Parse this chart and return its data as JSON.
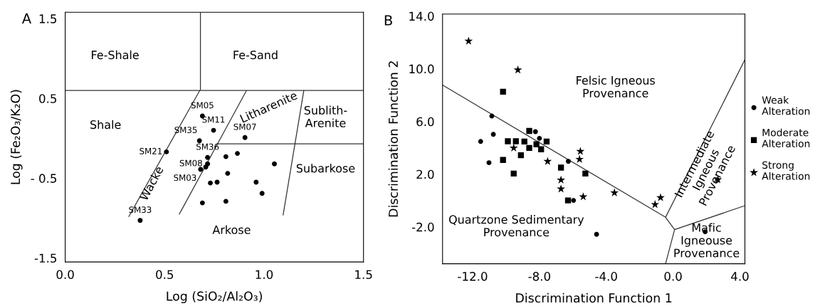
{
  "chart_data": [
    {
      "type": "scatter",
      "title": "A",
      "xlabel": "Log (SiO₂/Al₂O₃)",
      "ylabel": "Log (Fe₂O₃/K₂O)",
      "xlim": [
        0.0,
        1.5
      ],
      "ylim": [
        -1.55,
        1.58
      ],
      "xticks": [
        {
          "value": 0.0,
          "label": "0.0"
        },
        {
          "value": 0.5,
          "label": "0.5"
        },
        {
          "value": 1.0,
          "label": "1.0"
        },
        {
          "value": 1.5,
          "label": "1.5"
        }
      ],
      "yticks": [
        {
          "value": 1.5,
          "label": "1.5"
        },
        {
          "value": 0.5,
          "label": "0.5"
        },
        {
          "value": -0.5,
          "label": "- 0.5"
        },
        {
          "value": -1.5,
          "label": "-1.5"
        }
      ],
      "grid": false,
      "legend": false,
      "series": [
        {
          "marker": "circle",
          "color": "#000000",
          "x": [
            0.69,
            0.746,
            0.904,
            0.675,
            0.509,
            0.716,
            0.716,
            0.707,
            0.681,
            0.808,
            0.866,
            1.052,
            0.817,
            0.73,
            0.764,
            0.96,
            0.99,
            0.69,
            0.808,
            0.377
          ],
          "values": [
            0.28,
            0.1,
            0.01,
            -0.03,
            -0.17,
            -0.24,
            -0.32,
            -0.36,
            -0.39,
            -0.23,
            -0.19,
            -0.32,
            -0.44,
            -0.56,
            -0.55,
            -0.55,
            -0.69,
            -0.81,
            -0.79,
            -1.03
          ]
        },
        {
          "type": "line",
          "color": "#333333",
          "x": [
            0.0,
            1.5,
            null,
            0.68,
            0.68,
            null,
            0.677,
            0.32,
            null,
            0.912,
            0.574,
            null,
            1.2,
            1.096,
            null,
            0.766,
            1.5
          ],
          "values": [
            0.6,
            0.6,
            null,
            1.58,
            0.6,
            null,
            0.6,
            -0.98,
            null,
            0.6,
            -0.95,
            null,
            0.6,
            -0.96,
            null,
            -0.07,
            -0.07
          ]
        }
      ],
      "annotations": [
        {
          "text": "SM05",
          "x": 0.69,
          "y": 0.28
        },
        {
          "text": "SM11",
          "x": 0.746,
          "y": 0.1
        },
        {
          "text": "SM07",
          "x": 0.904,
          "y": 0.01
        },
        {
          "text": "SM35",
          "x": 0.675,
          "y": -0.03
        },
        {
          "text": "SM21",
          "x": 0.509,
          "y": -0.17
        },
        {
          "text": "SM36",
          "x": 0.716,
          "y": -0.24
        },
        {
          "text": "SM08",
          "x": 0.716,
          "y": -0.32
        },
        {
          "text": "SM03",
          "x": 0.681,
          "y": -0.39
        },
        {
          "text": "SM33",
          "x": 0.377,
          "y": -1.03
        },
        "Fe-Shale",
        "Fe-Sand",
        "Shale",
        "Litharenite",
        "Sublith-\nArenite",
        "Subarkose",
        "Wacke",
        "Arkose"
      ]
    },
    {
      "type": "scatter",
      "title": "B",
      "xlabel": "Discrimination Function 1",
      "ylabel": "Discrimination Function 2",
      "xlim": [
        -13.8,
        4.3
      ],
      "ylim": [
        -4.8,
        14.15
      ],
      "xticks": [
        {
          "value": -12,
          "label": "-12.0"
        },
        {
          "value": -8,
          "label": "-8.0"
        },
        {
          "value": -4,
          "label": "-4.0"
        },
        {
          "value": 0,
          "label": "0.0"
        },
        {
          "value": 4,
          "label": "4.0"
        }
      ],
      "yticks": [
        {
          "value": 14,
          "label": "14.0"
        },
        {
          "value": 10,
          "label": "10.0"
        },
        {
          "value": 6,
          "label": "6.0"
        },
        {
          "value": 2,
          "label": "2.0"
        },
        {
          "value": -2,
          "label": "-2.0"
        }
      ],
      "grid": false,
      "legend": "right",
      "series": [
        {
          "name": "Weak\nAlteration",
          "marker": "circle",
          "color": "#000000",
          "x": [
            -10.85,
            -10.76,
            -11.52,
            -8.24,
            -8.0,
            -11.02,
            -6.27,
            -5.96,
            -4.58,
            1.92
          ],
          "values": [
            6.41,
            5.02,
            4.48,
            5.23,
            4.72,
            2.87,
            2.97,
            0.01,
            -2.56,
            -2.37
          ]
        },
        {
          "name": "Moderate\nAlteration",
          "marker": "square",
          "color": "#000000",
          "x": [
            -10.18,
            -9.89,
            -9.41,
            -8.9,
            -8.61,
            -8.61,
            -8.18,
            -7.9,
            -7.57,
            -10.18,
            -9.11,
            -6.71,
            -9.54,
            -5.25,
            -6.29
          ],
          "values": [
            8.26,
            4.5,
            4.5,
            4.48,
            5.28,
            3.99,
            4.27,
            3.89,
            4.48,
            3.08,
            3.44,
            2.5,
            2.05,
            2.05,
            0.01
          ]
        },
        {
          "name": "Strong\nAlteration",
          "marker": "star",
          "color": "#000000",
          "x": [
            -12.24,
            -9.29,
            -9.54,
            -5.55,
            -7.51,
            -5.6,
            -6.71,
            -6.71,
            -5.38,
            -3.51,
            -0.75,
            -1.08,
            2.68
          ],
          "values": [
            12.1,
            9.91,
            3.99,
            3.73,
            2.97,
            3.13,
            1.56,
            0.88,
            0.29,
            0.59,
            0.22,
            -0.3,
            1.58
          ]
        },
        {
          "type": "line",
          "color": "#333333",
          "x": [
            -13.8,
            -0.45,
            0.09,
            4.3,
            null,
            0.09,
            -0.45,
            null,
            -0.45,
            4.3
          ],
          "values": [
            8.76,
            -1.27,
            -2.21,
            -0.39,
            null,
            -2.21,
            -4.8,
            null,
            -1.27,
            10.69
          ]
        }
      ],
      "annotations": [
        "Felsic Igneous\nProvenance",
        "Quartzone Sedimentary\nProvenance",
        "Intermediate\nIgneous\nProvenance",
        "Mafic\nIgneouse\nProvenance"
      ]
    }
  ]
}
